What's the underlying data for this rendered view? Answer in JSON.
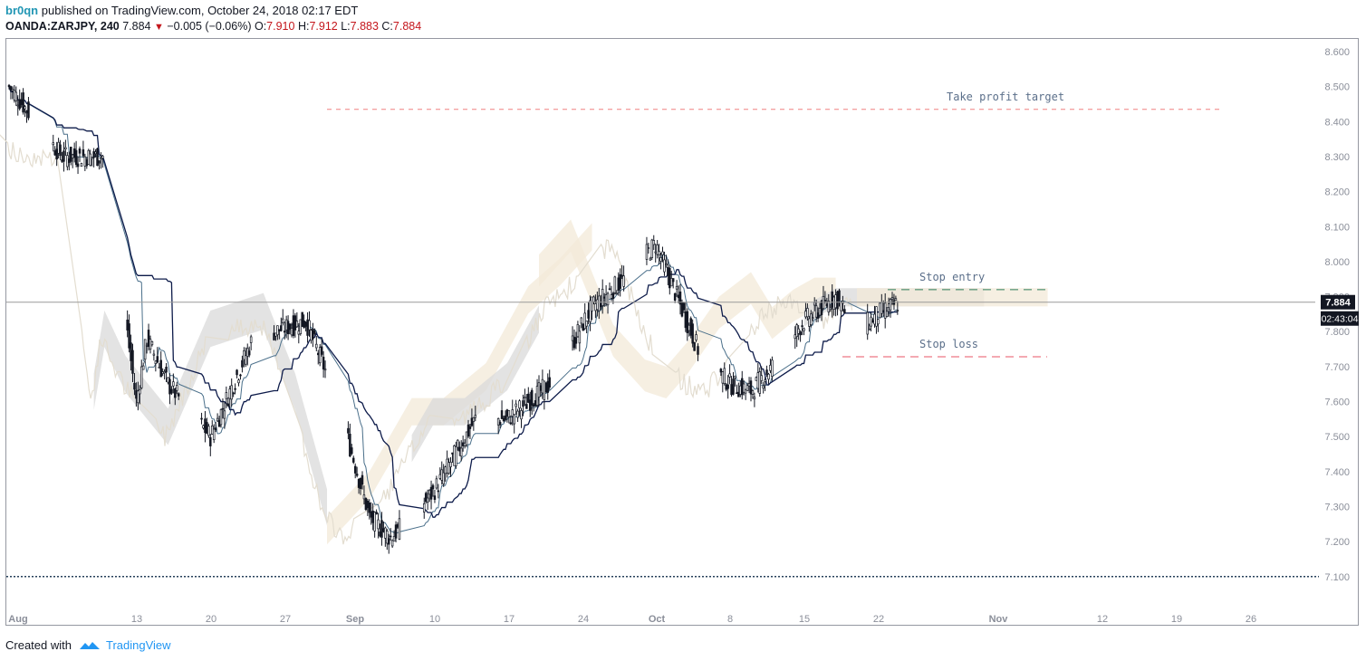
{
  "header": {
    "author": "br0qn",
    "published_text": "published on TradingView.com, October 24, 2018 02:17 EDT",
    "symbol": "OANDA:ZARJPY, 240",
    "last": "7.884",
    "change": "−0.005 (−0.06%)",
    "o_label": "O:",
    "o_value": "7.910",
    "h_label": "H:",
    "h_value": "7.912",
    "l_label": "L:",
    "l_value": "7.883",
    "c_label": "C:",
    "c_value": "7.884"
  },
  "footer": {
    "created_with": "Created with",
    "brand": "TradingView"
  },
  "colors": {
    "candle": "#131722",
    "kijun": "#0d1b4a",
    "tenkan": "#4a6f8a",
    "cloud_bear": "#d9d9d9",
    "cloud_bull": "#f3ead8",
    "lagging": "#e3ddd0",
    "target": "#f08080",
    "entry": "#2e7d5b",
    "stop": "#e85565",
    "support": "#27405a",
    "annot_text": "#5b6f8a"
  },
  "chart_data": {
    "type": "candlestick",
    "symbol": "OANDA:ZARJPY",
    "interval": "240",
    "ylim": [
      7.05,
      8.62
    ],
    "y_ticks": [
      "8.600",
      "8.500",
      "8.400",
      "8.300",
      "8.200",
      "8.100",
      "8.000",
      "7.900",
      "7.800",
      "7.700",
      "7.600",
      "7.500",
      "7.400",
      "7.300",
      "7.200",
      "7.100"
    ],
    "x_ticks": [
      "Aug",
      "13",
      "20",
      "27",
      "Sep",
      "10",
      "17",
      "24",
      "Oct",
      "8",
      "15",
      "22",
      "Nov",
      "12",
      "19",
      "26"
    ],
    "ohlc_path_keypoints": {
      "x": [
        "Aug 1",
        "Aug 6",
        "Aug 10",
        "Aug 13",
        "Aug 14",
        "Aug 16",
        "Aug 20",
        "Aug 24",
        "Aug 29",
        "Sep 1",
        "Sep 4",
        "Sep 6",
        "Sep 10",
        "Sep 14",
        "Sep 17",
        "Sep 21",
        "Sep 25",
        "Sep 28",
        "Oct 1",
        "Oct 3",
        "Oct 5",
        "Oct 8",
        "Oct 10",
        "Oct 12",
        "Oct 15",
        "Oct 18",
        "Oct 20",
        "Oct 22",
        "Oct 24"
      ],
      "close": [
        8.5,
        8.3,
        8.3,
        7.6,
        7.78,
        7.65,
        7.5,
        7.78,
        7.83,
        7.6,
        7.27,
        7.21,
        7.34,
        7.55,
        7.55,
        7.65,
        7.87,
        7.95,
        8.05,
        7.9,
        7.75,
        7.65,
        7.63,
        7.7,
        7.83,
        7.9,
        7.8,
        7.85,
        7.884
      ]
    },
    "last_price": "7.884",
    "countdown": "02:43:04",
    "annotations": [
      {
        "label": "Take profit target",
        "price": 8.435,
        "style": "dashed",
        "color": "#f08080"
      },
      {
        "label": "Stop entry",
        "price": 7.92,
        "style": "dashed",
        "color": "#2e7d5b"
      },
      {
        "label": "Stop loss",
        "price": 7.728,
        "style": "dashed",
        "color": "#e85565"
      },
      {
        "label": "",
        "price": 7.1,
        "style": "dotted",
        "color": "#27405a"
      }
    ],
    "indicators": [
      "candles",
      "ichimoku_cloud",
      "kijun",
      "tenkan",
      "chikou"
    ],
    "grid": false
  }
}
